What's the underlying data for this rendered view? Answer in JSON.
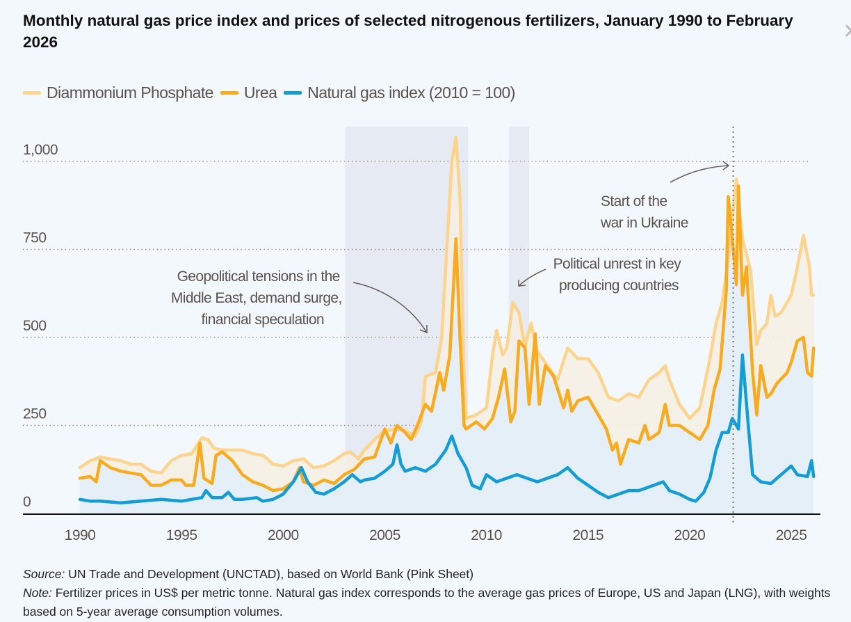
{
  "colors": {
    "dap": "#fdd48c",
    "urea": "#f9ab1c",
    "gas": "#119dd7",
    "shade": "#e6eaf2",
    "dap_fill": "#f5efe4",
    "gas_fill": "#e2eef8",
    "background": "#f3f8fd"
  },
  "header": {
    "close_icon": "close-icon"
  },
  "chart_data": {
    "type": "line",
    "title": "Monthly natural gas price index and prices of selected nitrogenous fertilizers, January 1990 to February 2026",
    "xlabel": "",
    "ylabel": "",
    "xlim": [
      1990,
      2026.2
    ],
    "ylim": [
      0,
      1000
    ],
    "x_ticks": [
      "1990",
      "1995",
      "2000",
      "2005",
      "2010",
      "2015",
      "2020",
      "2025"
    ],
    "y_ticks": [
      {
        "value": 0,
        "label": "0"
      },
      {
        "value": 250,
        "label": "250"
      },
      {
        "value": 500,
        "label": "500"
      },
      {
        "value": 750,
        "label": "750"
      },
      {
        "value": 1000,
        "label": "1,000"
      }
    ],
    "grid": "horizontal-dotted",
    "legend": "top-left",
    "series": [
      {
        "name": "Diammonium Phosphate",
        "key": "dap",
        "points": [
          [
            1990,
            130
          ],
          [
            1990.5,
            150
          ],
          [
            1991,
            160
          ],
          [
            1991.5,
            155
          ],
          [
            1992,
            150
          ],
          [
            1992.5,
            140
          ],
          [
            1993,
            140
          ],
          [
            1993.5,
            120
          ],
          [
            1994,
            115
          ],
          [
            1994.5,
            150
          ],
          [
            1995,
            165
          ],
          [
            1995.5,
            170
          ],
          [
            1996,
            215
          ],
          [
            1996.3,
            210
          ],
          [
            1996.6,
            185
          ],
          [
            1997,
            180
          ],
          [
            1998,
            180
          ],
          [
            1998.5,
            170
          ],
          [
            1999,
            165
          ],
          [
            1999.5,
            140
          ],
          [
            2000,
            135
          ],
          [
            2000.5,
            150
          ],
          [
            2001,
            155
          ],
          [
            2001.5,
            130
          ],
          [
            2002,
            135
          ],
          [
            2002.5,
            150
          ],
          [
            2003,
            170
          ],
          [
            2003.3,
            175
          ],
          [
            2003.7,
            155
          ],
          [
            2004,
            180
          ],
          [
            2004.5,
            210
          ],
          [
            2005,
            235
          ],
          [
            2005.5,
            240
          ],
          [
            2006,
            235
          ],
          [
            2006.5,
            220
          ],
          [
            2006.8,
            260
          ],
          [
            2007,
            390
          ],
          [
            2007.5,
            400
          ],
          [
            2007.8,
            500
          ],
          [
            2008,
            700
          ],
          [
            2008.3,
            1000
          ],
          [
            2008.5,
            1070
          ],
          [
            2008.7,
            900
          ],
          [
            2008.9,
            400
          ],
          [
            2009,
            270
          ],
          [
            2009.5,
            280
          ],
          [
            2010,
            300
          ],
          [
            2010.3,
            450
          ],
          [
            2010.5,
            520
          ],
          [
            2010.8,
            450
          ],
          [
            2011,
            470
          ],
          [
            2011.3,
            600
          ],
          [
            2011.6,
            570
          ],
          [
            2011.9,
            470
          ],
          [
            2012,
            500
          ],
          [
            2012.2,
            540
          ],
          [
            2012.5,
            460
          ],
          [
            2013,
            420
          ],
          [
            2013.5,
            380
          ],
          [
            2014,
            470
          ],
          [
            2014.5,
            440
          ],
          [
            2015,
            440
          ],
          [
            2015.5,
            400
          ],
          [
            2016,
            330
          ],
          [
            2016.5,
            320
          ],
          [
            2017,
            340
          ],
          [
            2017.5,
            330
          ],
          [
            2018,
            380
          ],
          [
            2018.5,
            400
          ],
          [
            2018.8,
            420
          ],
          [
            2019,
            380
          ],
          [
            2019.5,
            310
          ],
          [
            2020,
            270
          ],
          [
            2020.5,
            300
          ],
          [
            2021,
            440
          ],
          [
            2021.3,
            540
          ],
          [
            2021.6,
            600
          ],
          [
            2021.9,
            720
          ],
          [
            2022.1,
            840
          ],
          [
            2022.3,
            950
          ],
          [
            2022.6,
            780
          ],
          [
            2023,
            690
          ],
          [
            2023.3,
            480
          ],
          [
            2023.5,
            520
          ],
          [
            2023.8,
            540
          ],
          [
            2024,
            620
          ],
          [
            2024.2,
            560
          ],
          [
            2024.5,
            570
          ],
          [
            2025,
            620
          ],
          [
            2025.3,
            700
          ],
          [
            2025.6,
            790
          ],
          [
            2025.9,
            700
          ],
          [
            2026,
            620
          ],
          [
            2026.1,
            620
          ]
        ]
      },
      {
        "name": "Urea",
        "key": "urea",
        "points": [
          [
            1990,
            100
          ],
          [
            1990.5,
            105
          ],
          [
            1990.8,
            90
          ],
          [
            1991,
            150
          ],
          [
            1991.5,
            130
          ],
          [
            1992,
            120
          ],
          [
            1993,
            110
          ],
          [
            1993.5,
            80
          ],
          [
            1994,
            80
          ],
          [
            1994.5,
            95
          ],
          [
            1995,
            95
          ],
          [
            1995.2,
            80
          ],
          [
            1995.6,
            80
          ],
          [
            1995.9,
            200
          ],
          [
            1996.1,
            100
          ],
          [
            1996.5,
            85
          ],
          [
            1996.7,
            165
          ],
          [
            1997,
            175
          ],
          [
            1997.5,
            150
          ],
          [
            1998,
            110
          ],
          [
            1998.5,
            90
          ],
          [
            1999,
            80
          ],
          [
            1999.5,
            65
          ],
          [
            2000,
            70
          ],
          [
            2000.5,
            90
          ],
          [
            2000.8,
            130
          ],
          [
            2001,
            90
          ],
          [
            2001.5,
            80
          ],
          [
            2002,
            95
          ],
          [
            2002.5,
            85
          ],
          [
            2003,
            110
          ],
          [
            2003.5,
            125
          ],
          [
            2004,
            155
          ],
          [
            2004.5,
            160
          ],
          [
            2005,
            240
          ],
          [
            2005.3,
            200
          ],
          [
            2005.6,
            250
          ],
          [
            2006,
            230
          ],
          [
            2006.3,
            210
          ],
          [
            2006.6,
            250
          ],
          [
            2007,
            310
          ],
          [
            2007.3,
            290
          ],
          [
            2007.7,
            400
          ],
          [
            2007.9,
            350
          ],
          [
            2008.2,
            450
          ],
          [
            2008.5,
            780
          ],
          [
            2008.7,
            500
          ],
          [
            2008.9,
            250
          ],
          [
            2009,
            240
          ],
          [
            2009.5,
            260
          ],
          [
            2009.9,
            240
          ],
          [
            2010.3,
            270
          ],
          [
            2010.6,
            330
          ],
          [
            2010.9,
            410
          ],
          [
            2011.2,
            260
          ],
          [
            2011.4,
            290
          ],
          [
            2011.6,
            490
          ],
          [
            2011.9,
            470
          ],
          [
            2012.1,
            310
          ],
          [
            2012.4,
            510
          ],
          [
            2012.6,
            310
          ],
          [
            2012.9,
            420
          ],
          [
            2013.3,
            390
          ],
          [
            2013.8,
            300
          ],
          [
            2014,
            350
          ],
          [
            2014.2,
            290
          ],
          [
            2014.5,
            320
          ],
          [
            2015,
            330
          ],
          [
            2015.5,
            280
          ],
          [
            2015.9,
            240
          ],
          [
            2016.2,
            180
          ],
          [
            2016.4,
            200
          ],
          [
            2016.6,
            140
          ],
          [
            2017,
            210
          ],
          [
            2017.5,
            200
          ],
          [
            2017.8,
            250
          ],
          [
            2018,
            210
          ],
          [
            2018.5,
            230
          ],
          [
            2018.8,
            310
          ],
          [
            2019,
            250
          ],
          [
            2019.5,
            250
          ],
          [
            2020,
            230
          ],
          [
            2020.5,
            210
          ],
          [
            2020.9,
            250
          ],
          [
            2021.2,
            350
          ],
          [
            2021.5,
            410
          ],
          [
            2021.8,
            630
          ],
          [
            2021.9,
            900
          ],
          [
            2022.1,
            780
          ],
          [
            2022.3,
            650
          ],
          [
            2022.4,
            930
          ],
          [
            2022.6,
            620
          ],
          [
            2022.8,
            700
          ],
          [
            2023.1,
            400
          ],
          [
            2023.3,
            280
          ],
          [
            2023.5,
            420
          ],
          [
            2023.8,
            330
          ],
          [
            2024,
            340
          ],
          [
            2024.3,
            370
          ],
          [
            2024.8,
            400
          ],
          [
            2025,
            430
          ],
          [
            2025.3,
            490
          ],
          [
            2025.6,
            500
          ],
          [
            2025.8,
            400
          ],
          [
            2026,
            390
          ],
          [
            2026.1,
            470
          ]
        ]
      },
      {
        "name": "Natural gas index (2010 = 100)",
        "key": "gas",
        "points": [
          [
            1990,
            40
          ],
          [
            1990.5,
            35
          ],
          [
            1991,
            35
          ],
          [
            1992,
            30
          ],
          [
            1993,
            35
          ],
          [
            1994,
            40
          ],
          [
            1995,
            35
          ],
          [
            1996,
            45
          ],
          [
            1996.2,
            65
          ],
          [
            1996.5,
            45
          ],
          [
            1997,
            45
          ],
          [
            1997.3,
            60
          ],
          [
            1997.6,
            40
          ],
          [
            1998,
            40
          ],
          [
            1998.7,
            45
          ],
          [
            1999,
            35
          ],
          [
            1999.5,
            40
          ],
          [
            2000,
            55
          ],
          [
            2000.5,
            90
          ],
          [
            2000.9,
            130
          ],
          [
            2001.2,
            90
          ],
          [
            2001.6,
            60
          ],
          [
            2002,
            55
          ],
          [
            2002.5,
            70
          ],
          [
            2003,
            90
          ],
          [
            2003.4,
            110
          ],
          [
            2003.8,
            90
          ],
          [
            2004,
            95
          ],
          [
            2004.5,
            100
          ],
          [
            2005,
            120
          ],
          [
            2005.4,
            140
          ],
          [
            2005.6,
            195
          ],
          [
            2005.8,
            140
          ],
          [
            2006,
            120
          ],
          [
            2006.5,
            130
          ],
          [
            2007,
            120
          ],
          [
            2007.5,
            140
          ],
          [
            2008,
            180
          ],
          [
            2008.3,
            220
          ],
          [
            2008.6,
            170
          ],
          [
            2009,
            130
          ],
          [
            2009.3,
            80
          ],
          [
            2009.7,
            70
          ],
          [
            2010,
            110
          ],
          [
            2010.5,
            90
          ],
          [
            2011,
            100
          ],
          [
            2011.5,
            110
          ],
          [
            2012,
            100
          ],
          [
            2012.5,
            90
          ],
          [
            2013,
            100
          ],
          [
            2013.5,
            110
          ],
          [
            2014,
            130
          ],
          [
            2014.5,
            100
          ],
          [
            2015,
            80
          ],
          [
            2015.5,
            60
          ],
          [
            2016,
            45
          ],
          [
            2016.5,
            55
          ],
          [
            2017,
            65
          ],
          [
            2017.5,
            65
          ],
          [
            2018,
            75
          ],
          [
            2018.7,
            90
          ],
          [
            2019,
            65
          ],
          [
            2019.5,
            55
          ],
          [
            2020,
            40
          ],
          [
            2020.3,
            35
          ],
          [
            2020.7,
            60
          ],
          [
            2021,
            100
          ],
          [
            2021.3,
            180
          ],
          [
            2021.6,
            230
          ],
          [
            2021.9,
            230
          ],
          [
            2022.1,
            270
          ],
          [
            2022.4,
            240
          ],
          [
            2022.6,
            450
          ],
          [
            2022.9,
            240
          ],
          [
            2023.1,
            110
          ],
          [
            2023.5,
            90
          ],
          [
            2024,
            85
          ],
          [
            2024.5,
            110
          ],
          [
            2025,
            135
          ],
          [
            2025.3,
            110
          ],
          [
            2025.8,
            105
          ],
          [
            2026,
            150
          ],
          [
            2026.1,
            105
          ]
        ]
      }
    ],
    "shaded_periods": [
      [
        2003.05,
        2009.1
      ],
      [
        2011.1,
        2012.1
      ]
    ],
    "event_line": 2022.15,
    "annotations": [
      {
        "key": "geo",
        "lines": [
          "Geopolitical tensions in the",
          "Middle East, demand surge,",
          "financial speculation"
        ]
      },
      {
        "key": "unrest",
        "lines": [
          "Political unrest in key",
          "producing countries"
        ]
      },
      {
        "key": "war",
        "lines": [
          "Start of the",
          "war in Ukraine"
        ]
      }
    ]
  },
  "footer": {
    "source_label": "Source:",
    "source_text": " UN Trade and Development (UNCTAD), based on World Bank (Pink Sheet)",
    "note_label": "Note:",
    "note_text": " Fertilizer prices in US$ per metric tonne. Natural gas index corresponds to the average gas prices of Europe, US and Japan (LNG), with weights based on 5-year average consumption volumes."
  }
}
